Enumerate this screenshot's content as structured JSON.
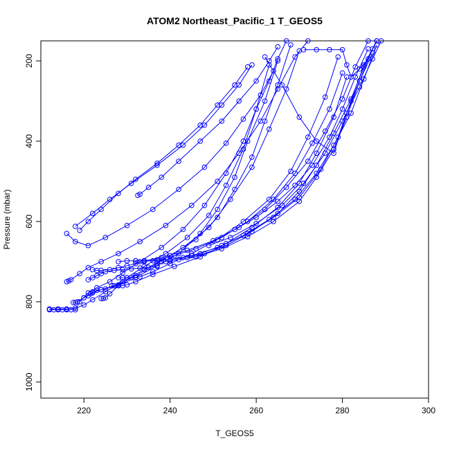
{
  "chart_data": {
    "type": "scatter",
    "title": "ATOM2 Northeast_Pacific_1 T_GEOS5",
    "xlabel": "T_GEOS5",
    "ylabel": "Pressure (mbar)",
    "xlim": [
      210,
      300
    ],
    "ylim": [
      1040,
      150
    ],
    "y_reversed": true,
    "x_ticks": [
      220,
      240,
      260,
      280,
      300
    ],
    "y_ticks": [
      200,
      400,
      600,
      800,
      1000
    ],
    "grid": false,
    "legend": "none",
    "marker": "open-circle",
    "colors": {
      "series": "#0000ff",
      "axis": "#000000",
      "background": "#ffffff"
    },
    "series": [
      {
        "x": [
          212,
          213,
          214,
          215,
          216,
          217,
          218,
          219,
          221,
          223,
          226,
          229,
          233,
          238,
          243,
          248,
          253,
          257,
          260,
          263,
          265,
          267
        ],
        "y": [
          820,
          820,
          820,
          820,
          820,
          820,
          820,
          800,
          778,
          765,
          750,
          728,
          700,
          665,
          620,
          560,
          480,
          400,
          320,
          250,
          195,
          150
        ]
      },
      {
        "x": [
          212,
          214,
          216,
          218,
          220,
          222,
          225,
          229,
          234,
          240,
          246,
          251,
          255,
          259,
          262,
          265,
          268
        ],
        "y": [
          818,
          818,
          818,
          816,
          808,
          795,
          775,
          750,
          720,
          685,
          645,
          590,
          520,
          440,
          350,
          260,
          160
        ]
      },
      {
        "x": [
          217.5,
          218,
          218.5,
          220,
          222,
          224,
          227,
          230,
          234,
          239,
          244,
          249,
          253,
          257,
          260,
          263
        ],
        "y": [
          802,
          802,
          800,
          790,
          778,
          770,
          760,
          740,
          712,
          680,
          640,
          585,
          510,
          420,
          320,
          210
        ]
      },
      {
        "x": [
          220,
          221,
          221.5,
          222,
          223,
          224,
          225,
          228,
          232,
          237,
          243,
          249,
          254,
          259,
          263,
          267,
          270
        ],
        "y": [
          790,
          785,
          780,
          775,
          772,
          770,
          768,
          758,
          735,
          705,
          665,
          615,
          545,
          465,
          370,
          270,
          175
        ]
      },
      {
        "x": [
          224,
          224.5,
          225,
          226,
          228,
          232,
          237,
          242,
          247,
          251,
          255,
          258,
          262,
          265
        ],
        "y": [
          792,
          792,
          790,
          780,
          760,
          740,
          710,
          680,
          630,
          570,
          490,
          400,
          300,
          200
        ]
      },
      {
        "x": [
          216,
          216.5,
          217,
          219,
          221,
          224,
          228,
          233,
          239,
          245,
          251,
          256,
          261,
          265,
          269,
          272
        ],
        "y": [
          750,
          748,
          745,
          730,
          715,
          700,
          680,
          650,
          610,
          560,
          500,
          430,
          350,
          270,
          190,
          150
        ]
      },
      {
        "x": [
          221,
          222,
          223,
          224,
          225,
          227,
          229,
          231,
          233,
          235,
          237
        ],
        "y": [
          745,
          740,
          735,
          730,
          725,
          722,
          720,
          718,
          716,
          714,
          712
        ]
      },
      {
        "x": [
          228,
          229,
          230,
          231,
          232,
          233,
          236,
          240,
          245,
          251,
          257,
          263,
          268,
          272,
          276,
          279
        ],
        "y": [
          740,
          740,
          740,
          740,
          740,
          738,
          725,
          705,
          680,
          645,
          600,
          545,
          475,
          390,
          290,
          190
        ]
      },
      {
        "x": [
          226.5,
          227,
          228,
          229,
          230,
          232,
          236,
          241,
          247,
          253,
          259,
          265,
          270,
          274,
          278,
          281
        ],
        "y": [
          760,
          760,
          760,
          760,
          758,
          750,
          732,
          712,
          688,
          655,
          615,
          565,
          505,
          430,
          340,
          240
        ]
      },
      {
        "x": [
          222,
          223,
          224,
          226,
          228,
          230,
          232,
          234,
          237,
          241,
          246,
          252,
          258,
          264,
          269,
          273,
          277,
          280
        ],
        "y": [
          720,
          722,
          722,
          720,
          715,
          710,
          705,
          700,
          695,
          685,
          668,
          640,
          600,
          545,
          480,
          405,
          320,
          230
        ]
      },
      {
        "x": [
          228,
          230,
          232,
          234,
          238,
          244,
          250,
          256,
          262,
          267,
          272,
          276,
          280,
          283,
          286
        ],
        "y": [
          700,
          698,
          698,
          698,
          690,
          672,
          648,
          615,
          570,
          515,
          450,
          375,
          295,
          215,
          150
        ]
      },
      {
        "x": [
          232,
          234,
          236,
          240,
          245,
          251,
          257,
          263,
          269,
          274,
          278,
          282,
          285,
          288
        ],
        "y": [
          698,
          698,
          698,
          695,
          685,
          665,
          635,
          595,
          545,
          480,
          410,
          330,
          245,
          160
        ]
      },
      {
        "x": [
          238,
          239,
          240,
          242,
          246,
          252,
          258,
          264,
          270,
          274,
          278,
          281,
          284,
          287
        ],
        "y": [
          700,
          700,
          698,
          695,
          688,
          668,
          638,
          600,
          550,
          490,
          420,
          340,
          250,
          170
        ]
      },
      {
        "x": [
          240,
          243,
          247,
          252,
          258,
          264,
          270,
          275,
          279,
          282,
          285,
          288
        ],
        "y": [
          695,
          690,
          680,
          660,
          630,
          590,
          540,
          470,
          390,
          300,
          210,
          150
        ]
      },
      {
        "x": [
          244,
          248,
          253,
          259,
          265,
          270,
          274,
          278,
          282,
          285,
          288
        ],
        "y": [
          690,
          680,
          660,
          625,
          580,
          525,
          460,
          380,
          295,
          215,
          150
        ]
      },
      {
        "x": [
          249,
          254,
          260,
          266,
          271,
          276,
          280,
          284,
          287,
          289
        ],
        "y": [
          660,
          640,
          605,
          560,
          505,
          430,
          350,
          265,
          195,
          150
        ]
      },
      {
        "x": [
          255,
          260,
          265,
          269,
          273,
          277,
          280,
          283,
          286
        ],
        "y": [
          620,
          590,
          550,
          510,
          460,
          390,
          320,
          240,
          170
        ]
      },
      {
        "x": [
          232.5,
          233,
          235,
          238,
          242,
          247,
          252,
          256,
          260,
          263,
          265
        ],
        "y": [
          535,
          532,
          515,
          490,
          450,
          400,
          350,
          300,
          250,
          200,
          165
        ]
      },
      {
        "x": [
          218,
          222,
          226,
          231,
          237,
          243,
          248,
          252,
          256,
          259
        ],
        "y": [
          612,
          580,
          545,
          505,
          460,
          410,
          360,
          310,
          260,
          210
        ]
      },
      {
        "x": [
          219,
          221,
          224,
          228,
          232,
          237,
          242,
          247,
          251,
          255,
          258
        ],
        "y": [
          622,
          600,
          570,
          530,
          495,
          455,
          410,
          360,
          310,
          260,
          215
        ]
      },
      {
        "x": [
          216,
          218,
          221,
          225,
          230,
          236,
          242,
          248,
          253,
          257,
          261,
          264
        ],
        "y": [
          630,
          650,
          660,
          640,
          610,
          570,
          520,
          465,
          405,
          345,
          285,
          225
        ]
      },
      {
        "x": [
          262,
          266,
          270,
          274,
          278,
          281,
          284,
          287
        ],
        "y": [
          190,
          260,
          340,
          400,
          430,
          330,
          250,
          180
        ]
      },
      {
        "x": [
          271,
          274,
          277,
          280,
          281,
          282,
          284,
          286
        ],
        "y": [
          172,
          172,
          172,
          172,
          210,
          240,
          220,
          195
        ]
      }
    ]
  }
}
